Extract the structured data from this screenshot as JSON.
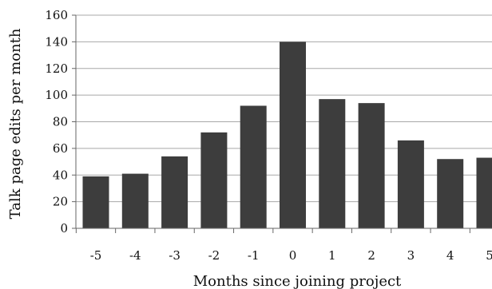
{
  "chart_data": {
    "type": "bar",
    "title": "",
    "xlabel": "Months since joining project",
    "ylabel": "Talk page edits per month",
    "categories": [
      "-5",
      "-4",
      "-3",
      "-2",
      "-1",
      "0",
      "1",
      "2",
      "3",
      "4",
      "5"
    ],
    "values": [
      39,
      41,
      54,
      72,
      92,
      140,
      97,
      94,
      66,
      52,
      53
    ],
    "ylim": [
      0,
      160
    ],
    "yticks": [
      "0",
      "20",
      "40",
      "60",
      "80",
      "100",
      "120",
      "140",
      "160"
    ],
    "grid": true,
    "legend": "none",
    "colors": {
      "bar": "#3d3d3d",
      "grid": "#a8a8a8",
      "axis": "#666666"
    }
  }
}
